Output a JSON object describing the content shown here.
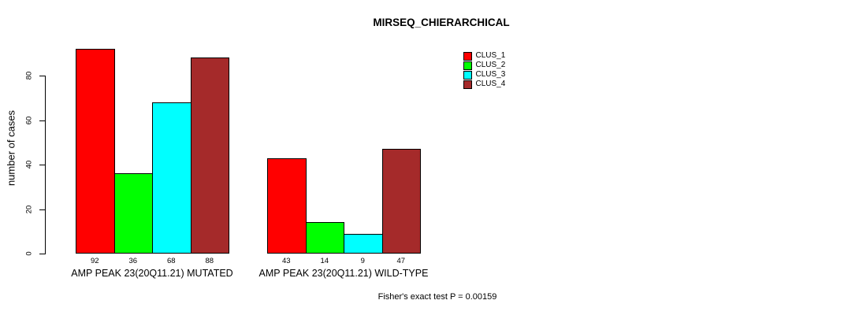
{
  "chart_data": {
    "type": "bar",
    "title": "MIRSEQ_CHIERARCHICAL",
    "ylabel": "number of cases",
    "categories": [
      "AMP PEAK 23(20Q11.21) MUTATED",
      "AMP PEAK 23(20Q11.21) WILD-TYPE"
    ],
    "series": [
      {
        "name": "CLUS_1",
        "color": "#FF0000",
        "values": [
          92,
          43
        ]
      },
      {
        "name": "CLUS_2",
        "color": "#00FF00",
        "values": [
          36,
          14
        ]
      },
      {
        "name": "CLUS_3",
        "color": "#00FFFF",
        "values": [
          68,
          9
        ]
      },
      {
        "name": "CLUS_4",
        "color": "#A52A2A",
        "values": [
          88,
          47
        ]
      }
    ],
    "yticks": [
      0,
      20,
      40,
      60,
      80
    ],
    "ylim": [
      0,
      95
    ],
    "grid": false,
    "bar_value_labels": true,
    "legend_position": "top-right",
    "footer": "Fisher's exact test P = 0.00159",
    "axis_color": "#000000",
    "background_color": "#FFFFFF"
  }
}
